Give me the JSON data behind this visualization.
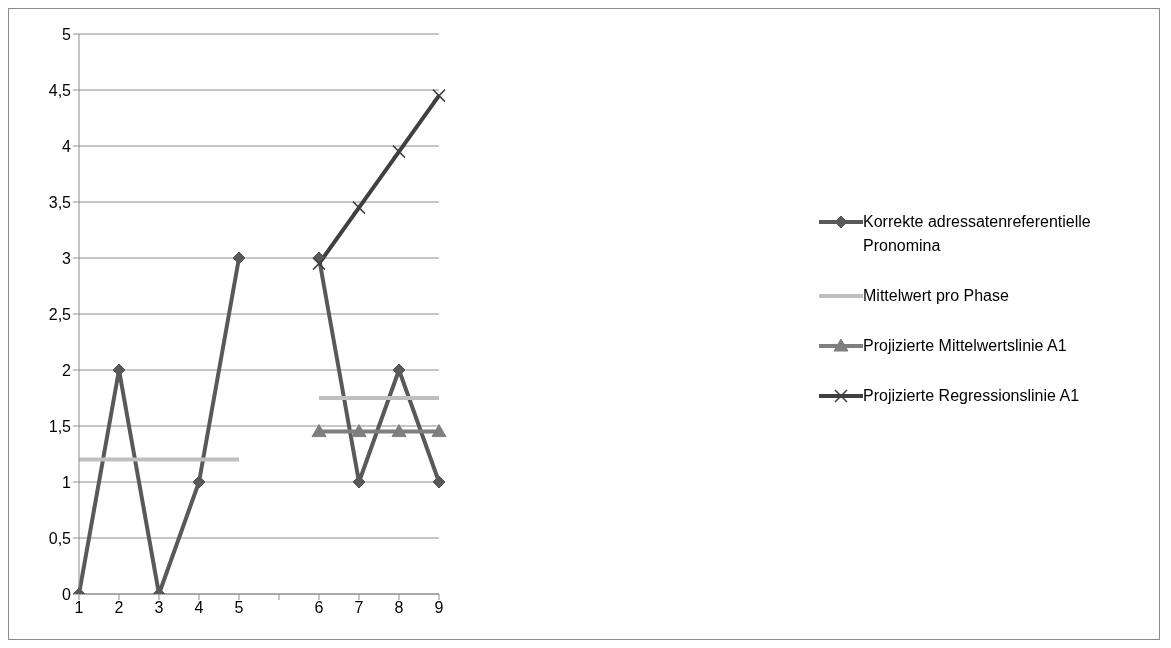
{
  "chart_data": {
    "type": "line",
    "categories": [
      "1",
      "2",
      "3",
      "4",
      "5",
      null,
      "6",
      "7",
      "8",
      "9"
    ],
    "series": [
      {
        "name": "Korrekte adressatenreferentielle Pronomina",
        "color": "#595959",
        "marker": "diamond",
        "values": [
          0,
          2,
          0,
          1,
          3,
          null,
          3,
          1,
          2,
          1
        ]
      },
      {
        "name": "Mittelwert pro Phase",
        "color": "#bfbfbf",
        "marker": "none",
        "values": [
          1.2,
          1.2,
          1.2,
          1.2,
          1.2,
          null,
          1.75,
          1.75,
          1.75,
          1.75
        ]
      },
      {
        "name": "Projizierte Mittelwertslinie A1",
        "color": "#7f7f7f",
        "marker": "triangle",
        "values": [
          null,
          null,
          null,
          null,
          null,
          null,
          1.45,
          1.45,
          1.45,
          1.45
        ]
      },
      {
        "name": "Projizierte Regressionslinie A1",
        "color": "#404040",
        "marker": "cross",
        "values": [
          null,
          null,
          null,
          null,
          null,
          null,
          2.95,
          3.45,
          3.95,
          4.45
        ]
      }
    ],
    "ylim": [
      0,
      5
    ],
    "yticks": [
      0,
      {
        "value": 0.5,
        "label": "0,5"
      },
      1,
      {
        "value": 1.5,
        "label": "1,5"
      },
      2,
      {
        "value": 2.5,
        "label": "2,5"
      },
      3,
      {
        "value": 3.5,
        "label": "3,5"
      },
      4,
      {
        "value": 4.5,
        "label": "4,5"
      },
      5
    ],
    "grid": "y",
    "legend": "right"
  }
}
